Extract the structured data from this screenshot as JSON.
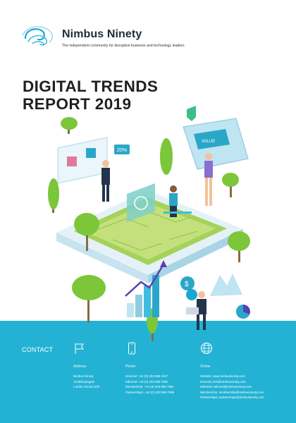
{
  "brand": {
    "name": "Nimbus Ninety",
    "tagline": "The independent community for disruptive business and technology leaders"
  },
  "title": {
    "line1": "DIGITAL TRENDS",
    "line2": "REPORT 2019"
  },
  "illustration": {
    "labels": {
      "discount": "20%",
      "card_text": "VALUE"
    }
  },
  "footer": {
    "contact_heading": "CONTACT",
    "address": {
      "heading": "Address",
      "icon": "flag-icon",
      "lines": [
        "Nimbus Ninety",
        "15 Bishopsgate",
        "London EC2N 3AR"
      ]
    },
    "phone": {
      "heading": "Phone",
      "icon": "mobile-phone-icon",
      "lines": [
        "General: +44 (0) 203 598 2237",
        "Editorial: +44 (0) 203 598 7582",
        "Membership: +44 (0) 203 598 7981",
        "Partnerships: +44 (0) 203 598 7585"
      ]
    },
    "online": {
      "heading": "Online",
      "icon": "globe-icon",
      "lines": [
        "Website: www.nimbusninety.com",
        "General: info@nimbusninety.com",
        "Editorial: editorial@nimbusninety.com",
        "Membership: membership@nimbusninety.com",
        "Partnerships: partnerships@nimbusninety.com"
      ]
    }
  },
  "colors": {
    "footer_bg": "#23b2d4",
    "logo_blue": "#1aa7d1",
    "title": "#1f1f24",
    "tree_green": "#7cc63a"
  }
}
